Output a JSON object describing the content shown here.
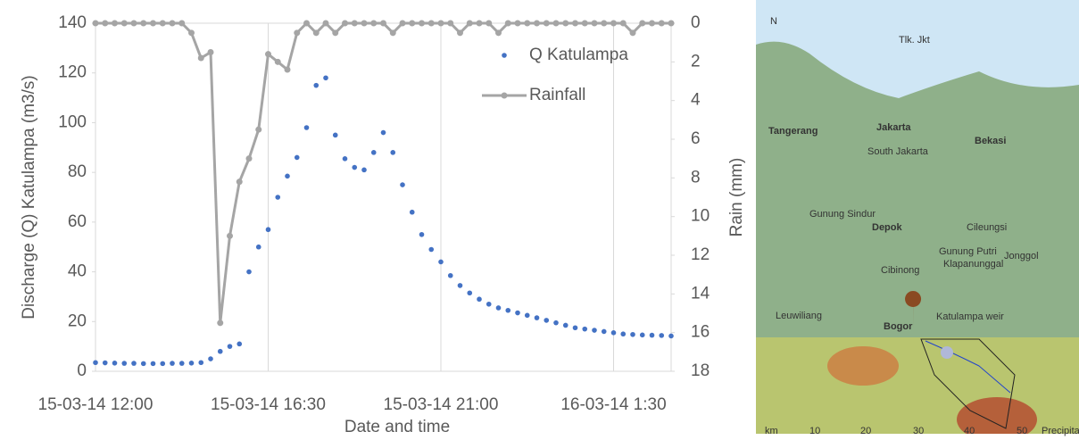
{
  "chart_data": {
    "type": "scatter-line",
    "x_label": "Date and time",
    "y_label": "Discharge (Q) Katulampa (m3/s)",
    "y2_label": "Rain (mm)",
    "x": [
      12,
      12.25,
      12.5,
      12.75,
      13,
      13.25,
      13.5,
      13.75,
      14,
      14.25,
      14.5,
      14.75,
      15,
      15.25,
      15.5,
      15.75,
      16,
      16.25,
      16.5,
      16.75,
      17,
      17.25,
      17.5,
      17.75,
      18,
      18.25,
      18.5,
      18.75,
      19,
      19.25,
      19.5,
      19.75,
      20,
      20.25,
      20.5,
      20.75,
      21,
      21.25,
      21.5,
      21.75,
      22,
      22.25,
      22.5,
      22.75,
      23,
      23.25,
      23.5,
      23.75,
      24,
      24.25,
      24.5,
      24.75,
      25,
      25.25,
      25.5,
      25.75,
      26,
      26.25,
      26.5,
      26.75,
      27
    ],
    "series": [
      {
        "name": "Q Katulampa",
        "color": "#4472c4",
        "style": "markers",
        "values": [
          3.5,
          3.4,
          3.3,
          3.2,
          3.2,
          3.1,
          3.1,
          3.1,
          3.2,
          3.2,
          3.3,
          3.5,
          5,
          8,
          10,
          11,
          40,
          50,
          57,
          70,
          78.5,
          86,
          98,
          115,
          118,
          95,
          85.5,
          82,
          81,
          88,
          96,
          88,
          75,
          64,
          55,
          49,
          44,
          38.5,
          34.5,
          31.5,
          29,
          27,
          25.5,
          24.5,
          23.5,
          22.5,
          21.5,
          20.5,
          19.5,
          18.5,
          17.5,
          17,
          16.5,
          16,
          15.5,
          15,
          14.8,
          14.6,
          14.5,
          14.4,
          14.2
        ]
      },
      {
        "name": "Rainfall",
        "color": "#a5a5a5",
        "style": "line-markers",
        "axis": "y2",
        "values": [
          0,
          0,
          0,
          0,
          0,
          0,
          0,
          0,
          0,
          0,
          0.5,
          1.8,
          1.5,
          15.5,
          11,
          8.2,
          7,
          5.5,
          1.6,
          2,
          2.4,
          0.5,
          0,
          0.5,
          0,
          0.5,
          0,
          0,
          0,
          0,
          0,
          0.5,
          0,
          0,
          0,
          0,
          0,
          0,
          0.5,
          0,
          0,
          0,
          0.5,
          0,
          0,
          0,
          0,
          0,
          0,
          0,
          0,
          0,
          0,
          0,
          0,
          0,
          0.5,
          0,
          0,
          0,
          0
        ]
      }
    ],
    "xlim": [
      12,
      27
    ],
    "xticks": [
      {
        "value": 12,
        "label": "15-03-14 12:00"
      },
      {
        "value": 16.5,
        "label": "15-03-14 16:30"
      },
      {
        "value": 21,
        "label": "15-03-14 21:00"
      },
      {
        "value": 25.5,
        "label": "16-03-14 1:30"
      }
    ],
    "ylim": [
      0,
      140
    ],
    "yticks": [
      0,
      20,
      40,
      60,
      80,
      100,
      120,
      140
    ],
    "y2lim": [
      18,
      0
    ],
    "y2ticks": [
      0,
      2,
      4,
      6,
      8,
      10,
      12,
      14,
      16,
      18
    ],
    "grid": "x",
    "legend": "upper right"
  },
  "map": {
    "north": "N",
    "labels": [
      "Tlk. Jkt",
      "Tangerang",
      "Jakarta",
      "South Jakarta",
      "Bekasi",
      "Gunung Sindur",
      "Depok",
      "Cileungsi",
      "Gunung Putri",
      "Klapanunggal",
      "Jonggol",
      "Cibinong",
      "Leuwiliang",
      "Bogor",
      "Katulampa weir"
    ],
    "scale": [
      "km",
      "10",
      "20",
      "30",
      "40",
      "50",
      "Precipita"
    ]
  }
}
